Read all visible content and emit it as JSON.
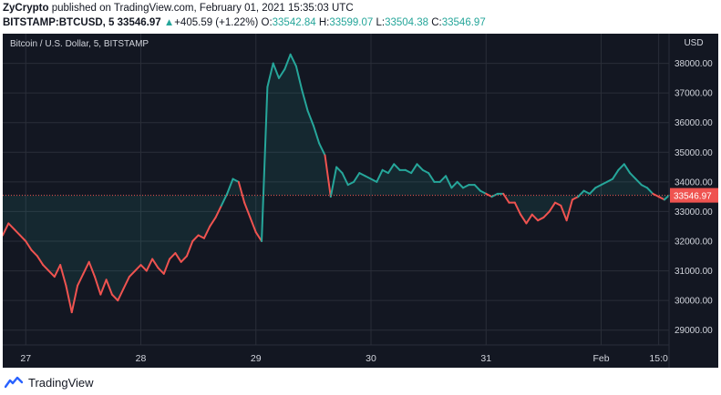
{
  "header": {
    "publisher": "ZyCrypto",
    "published_text": "published on TradingView.com, February 01, 2021 15:35:03 UTC",
    "symbol": "BITSTAMP:BTCUSD, 5",
    "last": "33546.97",
    "change_arrow": "▲",
    "change": "+405.59 (+1.22%)",
    "o_label": "O:",
    "o_value": "33542.84",
    "h_label": "H:",
    "h_value": "33599.07",
    "l_label": "L:",
    "l_value": "33504.38",
    "c_label": "C:",
    "c_value": "33546.97"
  },
  "footer": {
    "brand": "TradingView",
    "logo_icon": "tradingview-logo-icon"
  },
  "colors": {
    "up": "#26a69a",
    "down": "#ef5350",
    "background": "#131722",
    "grid": "#2a2e39",
    "axis_text": "#d1d4dc"
  },
  "chart_data": {
    "type": "line",
    "title": "Bitcoin / U.S. Dollar, 5, BITSTAMP",
    "currency": "USD",
    "last_price_label": "33546.97",
    "last_price": 33546.97,
    "ylim": [
      28500,
      39000
    ],
    "yticks": [
      29000,
      30000,
      31000,
      32000,
      33000,
      34000,
      35000,
      36000,
      37000,
      38000
    ],
    "ytick_labels": [
      "29000.00",
      "30000.00",
      "31000.00",
      "32000.00",
      "33000.00",
      "34000.00",
      "35000.00",
      "36000.00",
      "37000.00",
      "38000.00"
    ],
    "xlim": [
      0,
      5.79
    ],
    "xtick_values": [
      0.2,
      1.2,
      2.2,
      3.2,
      4.2,
      5.2,
      5.7
    ],
    "xtick_labels": [
      "27",
      "28",
      "29",
      "30",
      "31",
      "Feb",
      "15:0"
    ],
    "x_note": "x in days from start of Jan 27 view",
    "series": [
      {
        "x": [
          0,
          0.05,
          0.1,
          0.15,
          0.2,
          0.25,
          0.3,
          0.35,
          0.4,
          0.45,
          0.5,
          0.55,
          0.6,
          0.65,
          0.7,
          0.75,
          0.8,
          0.85,
          0.9,
          0.95,
          1.0,
          1.05,
          1.1,
          1.15,
          1.2,
          1.25,
          1.3,
          1.35,
          1.4,
          1.45,
          1.5,
          1.55,
          1.6,
          1.65,
          1.7,
          1.75,
          1.8,
          1.85,
          1.9,
          1.95,
          2.0,
          2.05,
          2.1,
          2.15,
          2.2,
          2.25,
          2.3,
          2.35,
          2.4,
          2.45,
          2.5,
          2.55,
          2.6,
          2.65,
          2.7,
          2.75,
          2.8,
          2.85,
          2.9,
          2.95,
          3.0,
          3.05,
          3.1,
          3.15,
          3.2,
          3.25,
          3.3,
          3.35,
          3.4,
          3.45,
          3.5,
          3.55,
          3.6,
          3.65,
          3.7,
          3.75,
          3.8,
          3.85,
          3.9,
          3.95,
          4.0,
          4.05,
          4.1,
          4.15,
          4.2,
          4.25,
          4.3,
          4.35,
          4.4,
          4.45,
          4.5,
          4.55,
          4.6,
          4.65,
          4.7,
          4.75,
          4.8,
          4.85,
          4.9,
          4.95,
          5.0,
          5.05,
          5.1,
          5.15,
          5.2,
          5.25,
          5.3,
          5.35,
          5.4,
          5.45,
          5.5,
          5.55,
          5.6,
          5.65,
          5.7,
          5.75,
          5.79
        ],
        "values": [
          32200,
          32600,
          32400,
          32200,
          32000,
          31700,
          31500,
          31200,
          31000,
          30800,
          31200,
          30500,
          29600,
          30500,
          30900,
          31300,
          30800,
          30200,
          30700,
          30200,
          30000,
          30400,
          30800,
          31000,
          31200,
          31000,
          31400,
          31100,
          30900,
          31400,
          31600,
          31300,
          31500,
          32000,
          32200,
          32100,
          32500,
          32800,
          33200,
          33600,
          34100,
          34000,
          33300,
          32800,
          32300,
          32000,
          37200,
          38000,
          37500,
          37800,
          38300,
          37900,
          37100,
          36400,
          35900,
          35300,
          34900,
          33500,
          34500,
          34300,
          33900,
          34000,
          34300,
          34200,
          34100,
          34000,
          34400,
          34300,
          34600,
          34400,
          34400,
          34300,
          34600,
          34400,
          34300,
          34000,
          34000,
          34200,
          33800,
          34000,
          33800,
          33900,
          33900,
          33700,
          33600,
          33500,
          33600,
          33600,
          33300,
          33300,
          32900,
          32600,
          32900,
          32700,
          32800,
          33000,
          33300,
          33200,
          32700,
          33400,
          33500,
          33700,
          33600,
          33800,
          33900,
          34000,
          34100,
          34400,
          34600,
          34300,
          34100,
          33900,
          33800,
          33600,
          33500,
          33400,
          33546.97
        ]
      }
    ]
  }
}
